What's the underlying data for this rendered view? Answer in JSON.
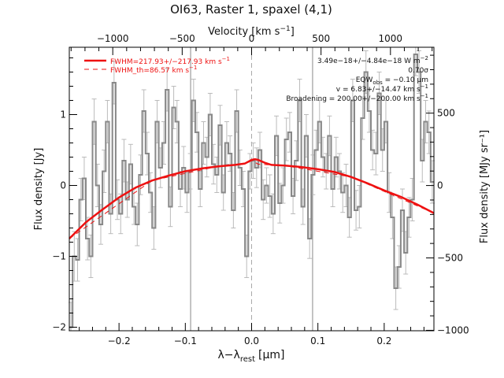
{
  "chart_data": {
    "type": "line",
    "title": "OI63, Raster 1, spaxel (4,1)",
    "xlabel": "λ−λ",
    "xlabel_sub": "rest",
    "xlabel_unit": "[μm]",
    "ylabel": "Flux density [Jy]",
    "ylabel_right": "Flux density [MJy sr⁻¹]",
    "xlabel_top": "Velocity [km s⁻¹]",
    "xlim": [
      -0.275,
      0.275
    ],
    "ylim": [
      -2.05,
      1.95
    ],
    "xlim_top_velocity": [
      -1313,
      1313
    ],
    "ylim_right": [
      -1003,
      955
    ],
    "x_ticks": [
      -0.2,
      -0.1,
      0.0,
      0.1,
      0.2
    ],
    "x_ticklabels": [
      "−0.2",
      "−0.1",
      "0.0",
      "0.1",
      "0.2"
    ],
    "y_ticks": [
      -2,
      -1,
      0,
      1
    ],
    "y_ticklabels": [
      "−2",
      "−1",
      "0",
      "1"
    ],
    "top_ticks": [
      -1000,
      -500,
      0,
      500,
      1000
    ],
    "top_ticklabels": [
      "−1000",
      "−500",
      "0",
      "500",
      "1000"
    ],
    "right_ticks": [
      -1000,
      -500,
      0,
      500
    ],
    "right_ticklabels": [
      "−1000",
      "−500",
      "0",
      "500"
    ],
    "vertical_lines_solid": [
      -0.092,
      0.092
    ],
    "vertical_line_dashed": 0.0,
    "legend": {
      "placement": "top-left",
      "fwhm_text": "FWHM=217.93+/−217.93 km s",
      "fwhm_sup": "−1",
      "fwhm_th_text": "FWHM_th=86.57 km s",
      "fwhm_th_sup": "−1"
    },
    "annotations": {
      "flux": "3.49e−18+/−4.84e−18 W m",
      "flux_sup": "−2",
      "sigma": "0.70σ",
      "eqw_prefix": "EQW",
      "eqw_sub": "obs",
      "eqw_value": " = −0.10 μm",
      "velocity": "v = 6.83+/−14.47 km s",
      "velocity_sup": "−1",
      "broadening": "Broadening = 200.00+/−200.00 km s",
      "broadening_sup": "−1"
    },
    "series": [
      {
        "style": "steps",
        "color": "#888888",
        "x": [
          -0.275,
          -0.27,
          -0.265,
          -0.26,
          -0.255,
          -0.25,
          -0.245,
          -0.24,
          -0.235,
          -0.23,
          -0.225,
          -0.22,
          -0.215,
          -0.21,
          -0.205,
          -0.2,
          -0.195,
          -0.19,
          -0.185,
          -0.18,
          -0.175,
          -0.17,
          -0.165,
          -0.16,
          -0.155,
          -0.15,
          -0.145,
          -0.14,
          -0.135,
          -0.13,
          -0.125,
          -0.12,
          -0.115,
          -0.11,
          -0.105,
          -0.1,
          -0.095,
          -0.09,
          -0.085,
          -0.08,
          -0.075,
          -0.07,
          -0.065,
          -0.06,
          -0.055,
          -0.05,
          -0.045,
          -0.04,
          -0.035,
          -0.03,
          -0.025,
          -0.02,
          -0.015,
          -0.01,
          -0.005,
          0.0,
          0.005,
          0.01,
          0.015,
          0.02,
          0.025,
          0.03,
          0.035,
          0.04,
          0.045,
          0.05,
          0.055,
          0.06,
          0.065,
          0.07,
          0.075,
          0.08,
          0.085,
          0.09,
          0.095,
          0.1,
          0.105,
          0.11,
          0.115,
          0.12,
          0.125,
          0.13,
          0.135,
          0.14,
          0.145,
          0.15,
          0.155,
          0.16,
          0.165,
          0.17,
          0.175,
          0.18,
          0.185,
          0.19,
          0.195,
          0.2,
          0.205,
          0.21,
          0.215,
          0.22,
          0.225,
          0.23,
          0.235,
          0.24,
          0.245,
          0.25,
          0.255,
          0.26,
          0.265,
          0.27
        ],
        "y": [
          -2.0,
          -1.0,
          -1.05,
          -0.2,
          0.1,
          -0.75,
          -1.0,
          0.9,
          0.0,
          -0.55,
          0.2,
          0.9,
          -0.4,
          1.45,
          -0.2,
          -0.4,
          0.35,
          -0.2,
          0.3,
          -0.3,
          -0.55,
          0.15,
          1.05,
          0.45,
          -0.1,
          -0.6,
          0.9,
          0.25,
          0.6,
          1.35,
          -0.3,
          1.1,
          0.9,
          -0.05,
          0.25,
          -0.1,
          0.2,
          1.2,
          0.75,
          -0.05,
          0.6,
          0.4,
          1.0,
          0.3,
          0.15,
          0.85,
          -0.1,
          0.6,
          0.45,
          -0.35,
          1.05,
          0.25,
          -0.05,
          -1.0,
          0.2,
          0.35,
          0.25,
          0.5,
          -0.2,
          0.0,
          -0.15,
          -0.4,
          0.7,
          -0.25,
          0.0,
          0.65,
          0.75,
          -0.15,
          0.35,
          1.2,
          -0.3,
          0.7,
          -0.75,
          0.15,
          0.5,
          0.9,
          0.4,
          0.2,
          0.7,
          -0.05,
          0.4,
          0.2,
          -0.1,
          0.0,
          -0.45,
          1.2,
          -0.35,
          -0.3,
          0.95,
          1.6,
          1.05,
          0.5,
          0.45,
          1.3,
          0.5,
          0.9,
          -0.1,
          -0.45,
          -1.45,
          -1.15,
          -0.35,
          -0.95,
          -0.45,
          -0.2,
          1.85,
          1.6,
          0.35,
          0.9,
          0.75,
          0.05
        ],
        "errors": [
          0.35,
          0.35,
          0.3,
          0.3,
          0.3,
          0.3,
          0.3,
          0.32,
          0.3,
          0.28,
          0.3,
          0.3,
          0.28,
          0.3,
          0.28,
          0.28,
          0.3,
          0.25,
          0.28,
          0.25,
          0.3,
          0.28,
          0.3,
          0.3,
          0.28,
          0.3,
          0.3,
          0.28,
          0.3,
          0.3,
          0.28,
          0.3,
          0.3,
          0.25,
          0.3,
          0.28,
          0.25,
          0.3,
          0.28,
          0.25,
          0.3,
          0.28,
          0.3,
          0.28,
          0.25,
          0.28,
          0.25,
          0.3,
          0.25,
          0.25,
          0.3,
          0.25,
          0.25,
          0.3,
          0.25,
          0.25,
          0.28,
          0.25,
          0.28,
          0.25,
          0.3,
          0.28,
          0.28,
          0.28,
          0.25,
          0.3,
          0.28,
          0.25,
          0.28,
          0.3,
          0.25,
          0.3,
          0.28,
          0.28,
          0.28,
          0.3,
          0.28,
          0.25,
          0.28,
          0.25,
          0.28,
          0.25,
          0.28,
          0.3,
          0.28,
          0.3,
          0.28,
          0.3,
          0.3,
          0.3,
          0.3,
          0.28,
          0.3,
          0.3,
          0.3,
          0.3,
          0.28,
          0.3,
          0.3,
          0.3,
          0.3,
          0.3,
          0.28,
          0.3,
          0.3,
          0.3,
          0.3,
          0.3,
          0.3,
          0.3
        ]
      },
      {
        "name": "FWHM=217.93+/−217.93 km s⁻¹",
        "style": "line",
        "color": "#ee1111",
        "x": [
          -0.275,
          -0.25,
          -0.225,
          -0.2,
          -0.175,
          -0.15,
          -0.125,
          -0.1,
          -0.075,
          -0.05,
          -0.025,
          -0.01,
          0.0,
          0.005,
          0.01,
          0.015,
          0.02,
          0.03,
          0.05,
          0.075,
          0.1,
          0.125,
          0.15,
          0.175,
          0.2,
          0.225,
          0.25,
          0.275
        ],
        "y": [
          -0.75,
          -0.52,
          -0.34,
          -0.17,
          -0.03,
          0.07,
          0.14,
          0.2,
          0.24,
          0.27,
          0.29,
          0.31,
          0.36,
          0.37,
          0.36,
          0.34,
          0.32,
          0.29,
          0.28,
          0.26,
          0.23,
          0.19,
          0.12,
          0.03,
          -0.07,
          -0.16,
          -0.27,
          -0.39
        ]
      },
      {
        "name": "FWHM_th=86.57 km s⁻¹",
        "style": "dashed",
        "color": "#ee1111",
        "x": [
          -0.275,
          -0.15,
          -0.05,
          -0.01,
          0.0,
          0.01,
          0.05,
          0.15,
          0.275
        ],
        "y": [
          -0.75,
          0.07,
          0.27,
          0.3,
          0.35,
          0.3,
          0.28,
          0.12,
          -0.39
        ]
      }
    ]
  }
}
